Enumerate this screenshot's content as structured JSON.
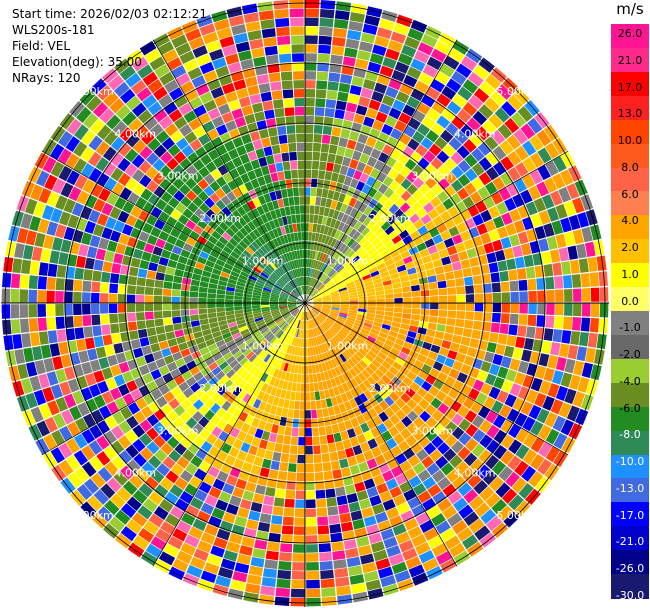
{
  "header": {
    "start_time": "Start time: 2026/02/03 02:12:21",
    "site": "WLS200s-181",
    "field": "Field: VEL",
    "elevation": "Elevation(deg): 35.00",
    "nrays": "NRays: 120"
  },
  "colorbar": {
    "unit": "m/s",
    "ticks": [
      "26.0",
      "21.0",
      "17.0",
      "13.0",
      "10.0",
      "8.0",
      "6.0",
      "4.0",
      "2.0",
      "1.0",
      "0.0",
      "-1.0",
      "-2.0",
      "-4.0",
      "-6.0",
      "-8.0",
      "-10.0",
      "-13.0",
      "-17.0",
      "-21.0",
      "-26.0",
      "-30.0"
    ],
    "colors": [
      "#ff1493",
      "#ff2a8c",
      "#ff0000",
      "#ff2020",
      "#ff4500",
      "#ff5a1e",
      "#ff6347",
      "#ff7f50",
      "#ffa500",
      "#ffc000",
      "#ffff00",
      "#ffff66",
      "#808080",
      "#696969",
      "#9acd32",
      "#6b8e23",
      "#228b22",
      "#2e8b57",
      "#1e90ff",
      "#4169e1",
      "#0000ff",
      "#0000cd",
      "#00008b",
      "#191970"
    ]
  },
  "ring_labels": [
    {
      "text": "1.00km",
      "id": "r1"
    },
    {
      "text": "2.00km",
      "id": "r2"
    },
    {
      "text": "3.00km",
      "id": "r3"
    },
    {
      "text": "4.00km",
      "id": "r4"
    },
    {
      "text": "5.00km",
      "id": "r5"
    }
  ]
}
